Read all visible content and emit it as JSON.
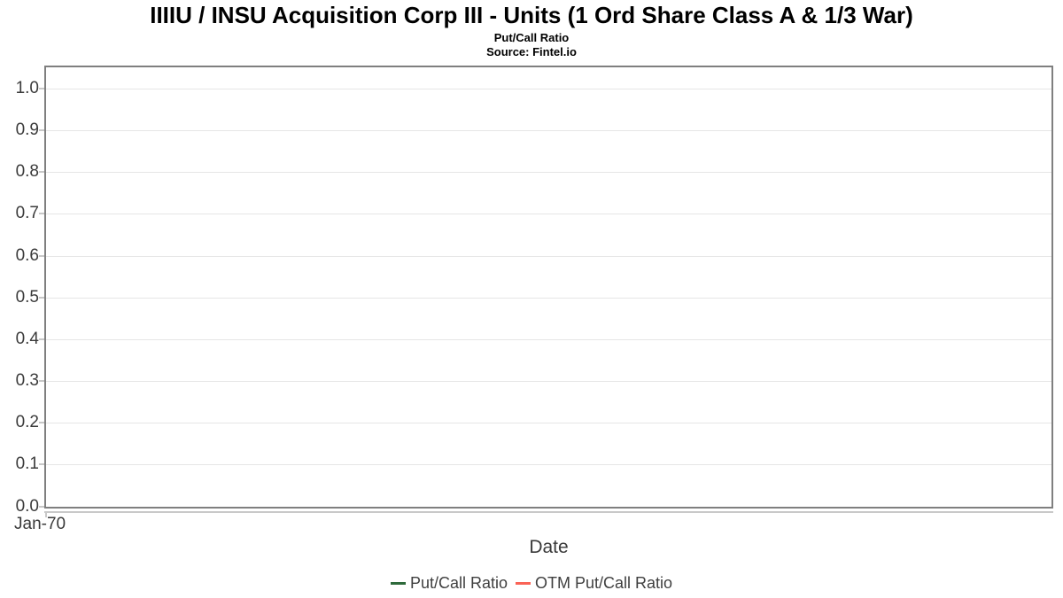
{
  "chart_data": {
    "type": "line",
    "title": "IIIIU / INSU Acquisition Corp III - Units (1 Ord Share Class A & 1/3 War)",
    "subtitle": "Put/Call Ratio",
    "source": "Source: Fintel.io",
    "xlabel": "Date",
    "ylabel": "",
    "ylim": [
      0.0,
      1.05
    ],
    "yticks": [
      0.0,
      0.1,
      0.2,
      0.3,
      0.4,
      0.5,
      0.6,
      0.7,
      0.8,
      0.9,
      1.0
    ],
    "ytick_labels": [
      "0.0",
      "0.1",
      "0.2",
      "0.3",
      "0.4",
      "0.5",
      "0.6",
      "0.7",
      "0.8",
      "0.9",
      "1.0"
    ],
    "xtick_labels": [
      "Jan-70"
    ],
    "grid": true,
    "legend_position": "bottom-center",
    "series": [
      {
        "name": "Put/Call Ratio",
        "color": "#2e6a3b",
        "x": [],
        "values": []
      },
      {
        "name": "OTM Put/Call Ratio",
        "color": "#fa6356",
        "x": [],
        "values": []
      }
    ]
  },
  "colors": {
    "plot_border": "#7f7f7f",
    "gridline": "#e6e6e6",
    "tick_mark": "#c8c8c8",
    "axis_line": "#c9c9c9",
    "tick_text": "#3b3b3b",
    "label_text": "#3a3a3a",
    "title_text": "#000000",
    "background": "#ffffff"
  }
}
